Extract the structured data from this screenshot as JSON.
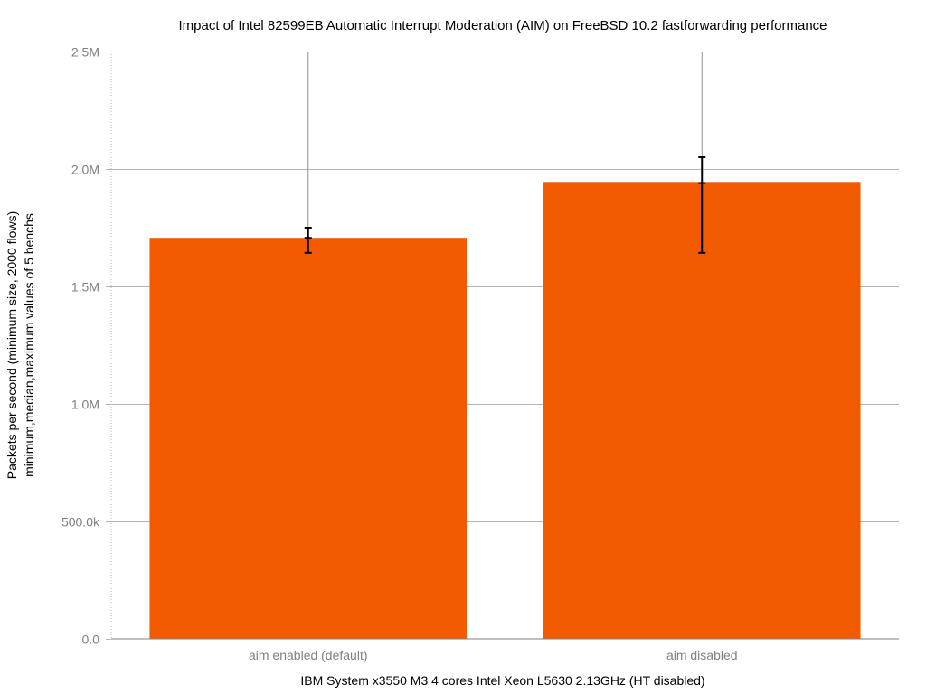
{
  "chart_data": {
    "type": "bar",
    "title": "Impact of Intel 82599EB Automatic Interrupt Moderation (AIM) on FreeBSD 10.2 fastforwarding performance",
    "xlabel": "IBM System x3550 M3 4 cores Intel Xeon L5630 2.13GHz (HT disabled)",
    "ylabel_line1": "Packets per second (minimum size, 2000 flows)",
    "ylabel_line2": "minimum,median,maximum values of 5 benchs",
    "categories": [
      "aim enabled (default)",
      "aim disabled"
    ],
    "values": [
      1707000,
      1945000
    ],
    "error_min": [
      1643000,
      1643000
    ],
    "error_median": [
      1707000,
      1940000
    ],
    "error_max": [
      1750000,
      2050000
    ],
    "ylim": [
      0,
      2500000
    ],
    "yticks": [
      0,
      500000,
      1000000,
      1500000,
      2000000,
      2500000
    ],
    "ytick_labels": [
      "0.0",
      "500.0k",
      "1.0M",
      "1.5M",
      "2.0M",
      "2.5M"
    ],
    "grid": true,
    "legend": "none",
    "colors": {
      "bar": "#f25a00",
      "grid": "#b3b3b3",
      "error_bar": "#000000"
    }
  }
}
